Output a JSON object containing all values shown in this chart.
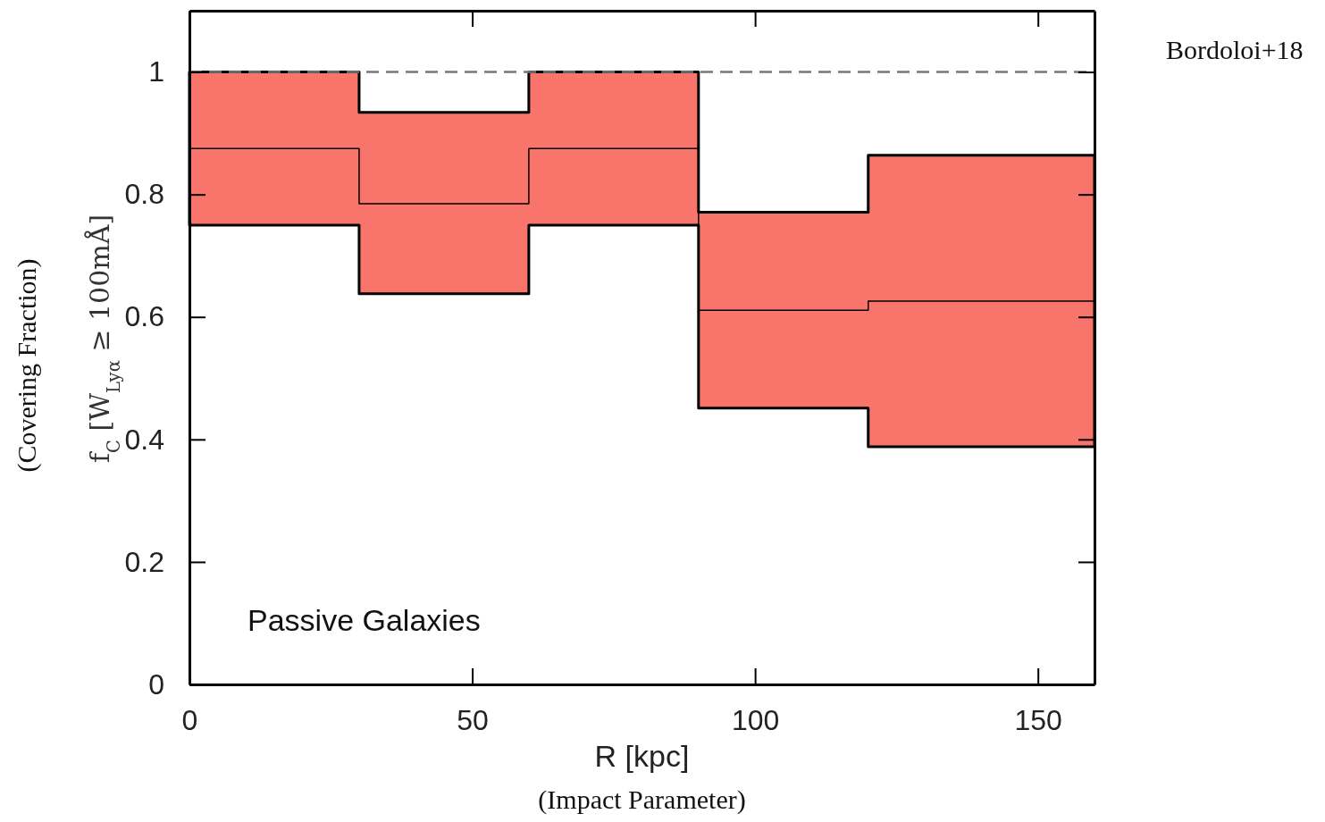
{
  "chart_data": {
    "type": "step",
    "xlabel": "R [kpc]",
    "ylabel": "f$_{C}$ [W$_{Lyα}$ ≥ 100mÅ]",
    "x": [
      0,
      30,
      60,
      90,
      120,
      160
    ],
    "series": [
      {
        "color": "#000000",
        "values": [
          0.875,
          0.785,
          0.875,
          0.611,
          0.626,
          0.626
        ],
        "lower": [
          0.75,
          0.638,
          0.75,
          0.451,
          0.388,
          0.388
        ],
        "upper": [
          1,
          0.934,
          1,
          0.771,
          0.864,
          0.864
        ]
      }
    ],
    "xlim": [
      0,
      160
    ],
    "ylim": [
      0,
      1.1
    ],
    "xticks": [
      0,
      50,
      100,
      150
    ],
    "yticks": [
      0,
      0.2,
      0.4,
      0.6,
      0.8,
      1
    ],
    "ref_lines": [
      {
        "axis": "y",
        "value": 1,
        "color": "#777777",
        "line_style": "dashed"
      }
    ],
    "annotations": [
      "Passive Galaxies",
      "Bordoloi+18",
      "(Covering Fraction)",
      "(Impact Parameter)"
    ],
    "grid": false,
    "legend": false
  }
}
